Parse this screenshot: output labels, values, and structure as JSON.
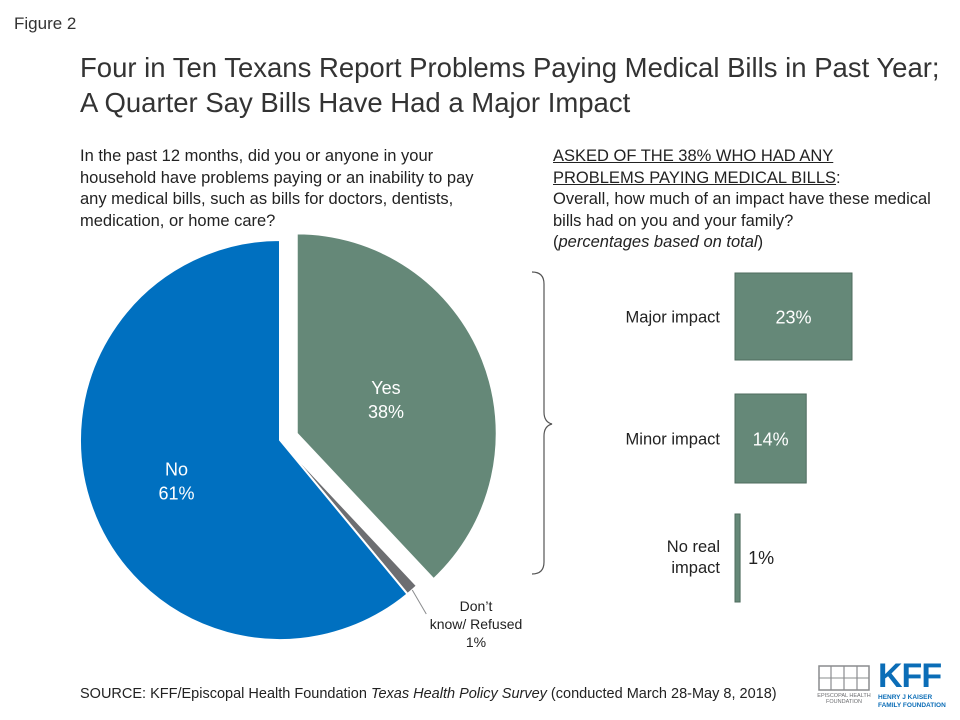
{
  "figure_label": "Figure 2",
  "title": "Four in Ten Texans Report Problems Paying Medical Bills in Past Year; A Quarter Say Bills Have Had a Major Impact",
  "left_question": "In the past 12 months, did you or anyone in your household have problems paying or an inability to pay any medical bills, such as bills for doctors, dentists, medication, or home care?",
  "right_question": {
    "line1": "ASKED OF THE 38% WHO HAD ANY",
    "line2": "PROBLEMS PAYING MEDICAL BILLS",
    "line2_suffix": ":",
    "body": "Overall, how much of an impact have these medical bills had on you and your family?",
    "note_open": "(",
    "note_italic": "percentages based on total",
    "note_close": ")"
  },
  "source": {
    "prefix": "SOURCE: KFF/Episcopal Health Foundation ",
    "italic": "Texas Health Policy Survey",
    "suffix": " (conducted March 28-May 8, 2018)"
  },
  "logos": {
    "ehf_text_1": "EPISCOPAL HEALTH",
    "ehf_text_2": "FOUNDATION",
    "kff_main": "KFF",
    "kff_sub_1": "HENRY J KAISER",
    "kff_sub_2": "FAMILY FOUNDATION"
  },
  "colors": {
    "yes": "#658878",
    "no": "#0070c0",
    "dk": "#6d6e71",
    "bar": "#658878",
    "kff_blue": "#0b6db7"
  },
  "chart_data": [
    {
      "type": "pie",
      "slices": [
        {
          "label": "Yes",
          "value_label": "38%",
          "value": 38
        },
        {
          "label": "Don’t know/ Refused",
          "value_label": "1%",
          "value": 1
        },
        {
          "label": "No",
          "value_label": "61%",
          "value": 61
        }
      ]
    },
    {
      "type": "bar",
      "orientation": "horizontal",
      "categories": [
        "Major impact",
        "Minor impact",
        "No real impact"
      ],
      "values": [
        23,
        14,
        1
      ],
      "value_labels": [
        "23%",
        "14%",
        "1%"
      ]
    }
  ]
}
